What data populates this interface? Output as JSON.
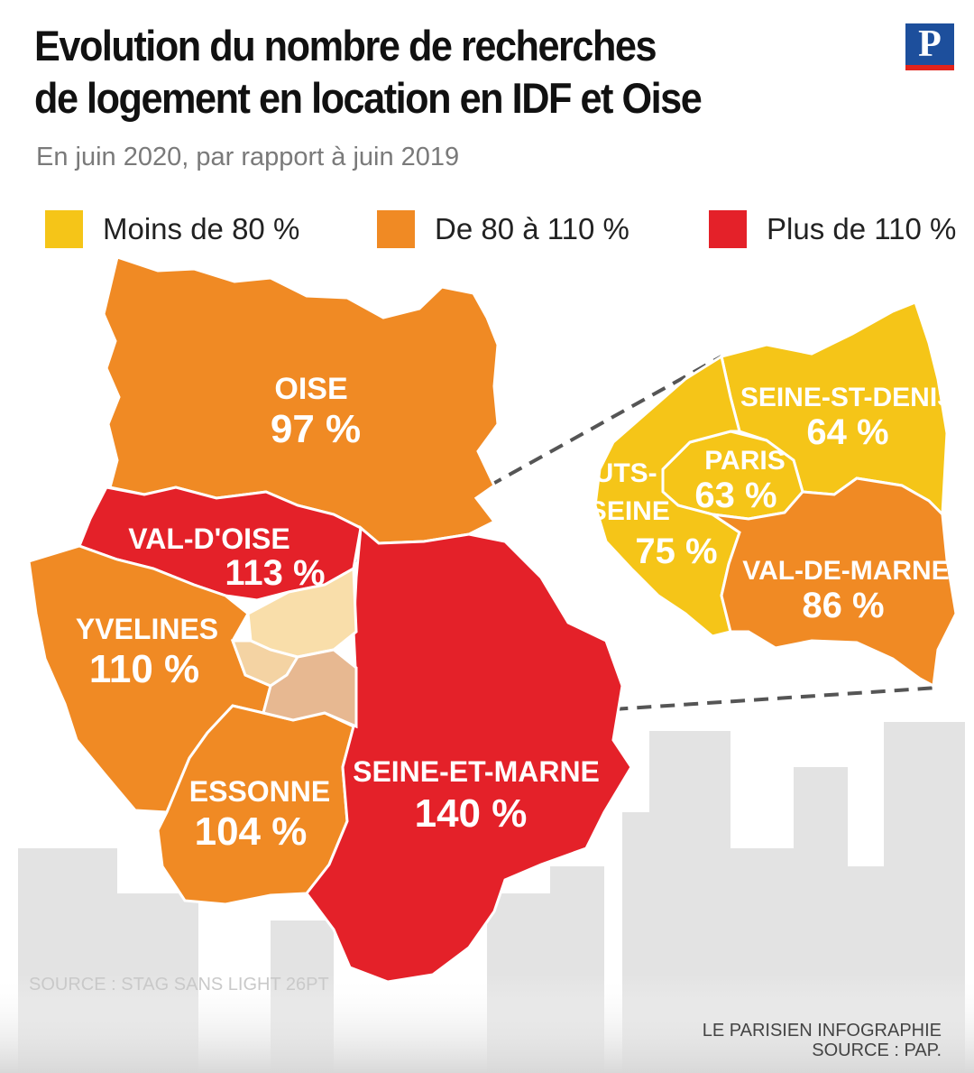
{
  "title_line1": "Evolution du nombre de recherches",
  "title_line2": "de logement en location en IDF et Oise",
  "subtitle": "En juin 2020, par rapport à juin 2019",
  "logo_letter": "P",
  "legend": [
    {
      "label": "Moins de 80 %",
      "color": "#f5c518"
    },
    {
      "label": "De 80 à 110 %",
      "color": "#f08a24"
    },
    {
      "label": "Plus de 110 %",
      "color": "#e42129"
    }
  ],
  "regions": {
    "oise": {
      "name": "OISE",
      "value": "97 %",
      "color": "#f08a24"
    },
    "val_doise": {
      "name": "VAL-D'OISE",
      "value": "113 %",
      "color": "#e42129"
    },
    "yvelines": {
      "name": "YVELINES",
      "value": "110 %",
      "color": "#f08a24"
    },
    "essonne": {
      "name": "ESSONNE",
      "value": "104 %",
      "color": "#f08a24"
    },
    "seine_et_marne": {
      "name": "SEINE-ET-MARNE",
      "value": "140 %",
      "color": "#e42129"
    },
    "seine_st_denis": {
      "name": "SEINE-ST-DENIS",
      "value": "64 %",
      "color": "#f5c518"
    },
    "paris": {
      "name": "PARIS",
      "value": "63 %",
      "color": "#f5c518"
    },
    "hauts_de_seine": {
      "name_line1": "HAUTS-",
      "name_line2": "DE-SEINE",
      "value": "75 %",
      "color": "#f5c518"
    },
    "val_de_marne": {
      "name": "VAL-DE-MARNE",
      "value": "86 %",
      "color": "#f08a24"
    }
  },
  "source_top": "LE PARISIEN INFOGRAPHIE",
  "source_bottom": "SOURCE : PAP.",
  "watermark_text": "SOURCE : STAG SANS LIGHT 26PT"
}
